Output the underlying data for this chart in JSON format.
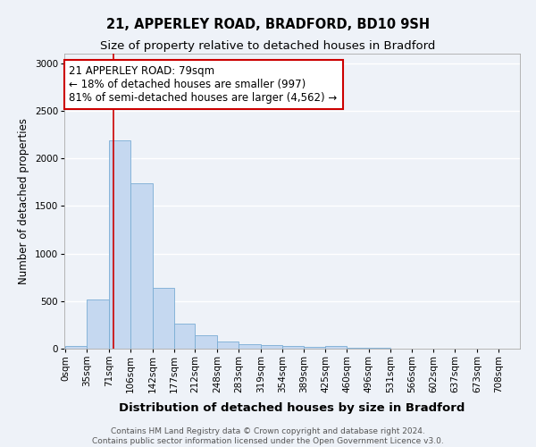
{
  "title_line1": "21, APPERLEY ROAD, BRADFORD, BD10 9SH",
  "title_line2": "Size of property relative to detached houses in Bradford",
  "xlabel": "Distribution of detached houses by size in Bradford",
  "ylabel": "Number of detached properties",
  "footnote": "Contains HM Land Registry data © Crown copyright and database right 2024.\nContains public sector information licensed under the Open Government Licence v3.0.",
  "bin_labels": [
    "0sqm",
    "35sqm",
    "71sqm",
    "106sqm",
    "142sqm",
    "177sqm",
    "212sqm",
    "248sqm",
    "283sqm",
    "319sqm",
    "354sqm",
    "389sqm",
    "425sqm",
    "460sqm",
    "496sqm",
    "531sqm",
    "566sqm",
    "602sqm",
    "637sqm",
    "673sqm",
    "708sqm"
  ],
  "bin_edges": [
    0,
    35,
    71,
    106,
    142,
    177,
    212,
    248,
    283,
    319,
    354,
    389,
    425,
    460,
    496,
    531,
    566,
    602,
    637,
    673,
    708
  ],
  "bar_heights": [
    30,
    520,
    2190,
    1740,
    640,
    265,
    140,
    75,
    50,
    40,
    30,
    20,
    25,
    5,
    5,
    2,
    2,
    2,
    1,
    1,
    1
  ],
  "bar_color": "#c5d8f0",
  "bar_edgecolor": "#7aadd4",
  "ylim": [
    0,
    3100
  ],
  "yticks": [
    0,
    500,
    1000,
    1500,
    2000,
    2500,
    3000
  ],
  "red_line_x": 79,
  "annotation_text": "21 APPERLEY ROAD: 79sqm\n← 18% of detached houses are smaller (997)\n81% of semi-detached houses are larger (4,562) →",
  "annotation_box_facecolor": "#ffffff",
  "annotation_box_edgecolor": "#cc0000",
  "background_color": "#eef2f8",
  "grid_color": "#ffffff",
  "title_fontsize": 10.5,
  "subtitle_fontsize": 9.5,
  "ylabel_fontsize": 8.5,
  "xlabel_fontsize": 9.5,
  "tick_fontsize": 7.5,
  "annotation_fontsize": 8.5,
  "footnote_fontsize": 6.5,
  "footnote_color": "#555555"
}
